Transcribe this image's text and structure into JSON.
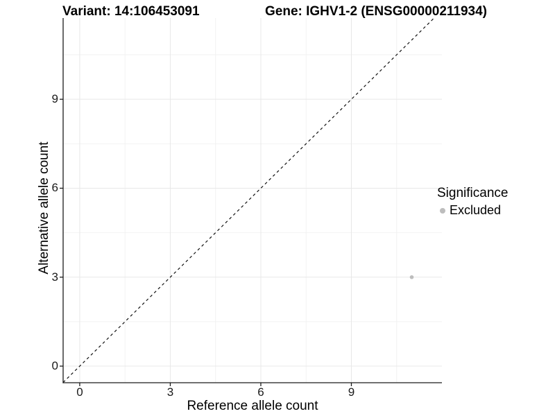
{
  "titles": {
    "left": "Variant: 14:106453091",
    "right": "Gene: IGHV1-2 (ENSG00000211934)"
  },
  "chart_data": {
    "type": "scatter",
    "xlabel": "Reference allele count",
    "ylabel": "Alternative allele count",
    "xticks": [
      0,
      3,
      6,
      9
    ],
    "yticks": [
      0,
      3,
      6,
      9
    ],
    "minor_xticks": [
      1.5,
      4.5,
      7.5,
      10.5
    ],
    "minor_yticks": [
      1.5,
      4.5,
      7.5,
      10.5
    ],
    "xlim": [
      -0.55,
      12.0
    ],
    "ylim": [
      -0.56,
      11.74
    ],
    "grid": true,
    "points": [
      {
        "x": 11,
        "y": 3,
        "series": "Excluded"
      }
    ],
    "reference_line": {
      "type": "identity",
      "equation": "y = x",
      "style": "dashed"
    },
    "legend": {
      "title": "Significance",
      "position": "right",
      "entries": [
        {
          "label": "Excluded",
          "color": "#bdbdbd"
        }
      ]
    },
    "colors": {
      "point": "#bdbdbd",
      "grid_major": "#e8e8e8",
      "grid_minor": "#f2f2f2",
      "axis": "#1a1a1a",
      "reference_line": "#111111"
    }
  }
}
